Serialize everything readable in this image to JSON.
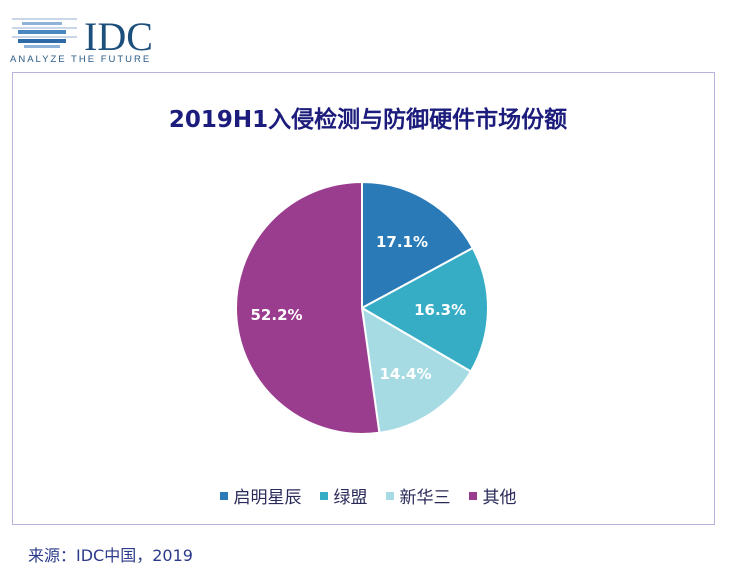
{
  "logo": {
    "name": "IDC",
    "tagline": "ANALYZE THE FUTURE"
  },
  "chart_data": {
    "type": "pie",
    "title": "2019H1入侵检测与防御硬件市场份额",
    "categories": [
      "启明星辰",
      "绿盟",
      "新华三",
      "其他"
    ],
    "values": [
      17.1,
      16.3,
      14.4,
      52.2
    ],
    "labels": [
      "17.1%",
      "16.3%",
      "14.4%",
      "52.2%"
    ],
    "colors": [
      "#2a7ab8",
      "#36adc5",
      "#a6dbe4",
      "#9a3d8e"
    ],
    "legend_position": "bottom"
  },
  "source": "来源：IDC中国，2019"
}
